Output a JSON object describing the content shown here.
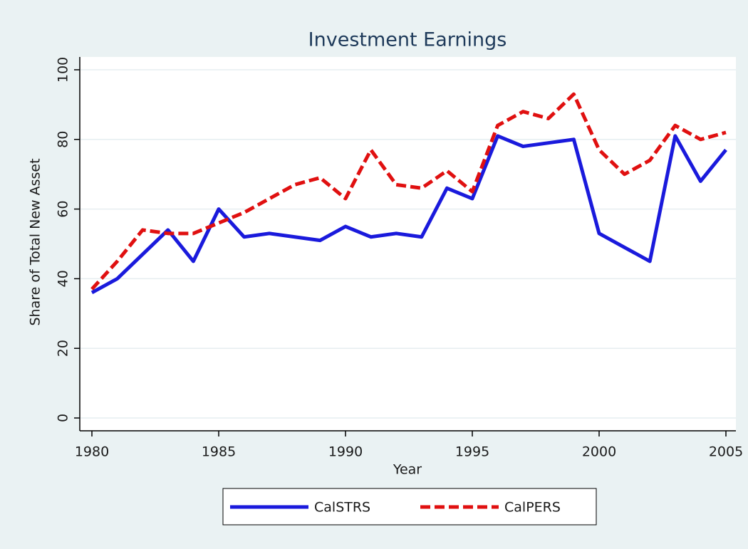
{
  "chart_data": {
    "type": "line",
    "title": "Investment Earnings",
    "x_label": "Year",
    "y_label": "Share of Total New Asset",
    "x": [
      1980,
      1981,
      1982,
      1983,
      1984,
      1985,
      1986,
      1987,
      1988,
      1989,
      1990,
      1991,
      1992,
      1993,
      1994,
      1995,
      1996,
      1997,
      1998,
      1999,
      2000,
      2001,
      2002,
      2003,
      2004,
      2005
    ],
    "series": [
      {
        "name": "CalSTRS",
        "color": "#1a1adc",
        "dash": "solid",
        "values": [
          36,
          40,
          47,
          54,
          45,
          60,
          52,
          53,
          52,
          51,
          55,
          52,
          53,
          52,
          66,
          63,
          81,
          78,
          79,
          80,
          53,
          49,
          45,
          81,
          68,
          77
        ]
      },
      {
        "name": "CalPERS",
        "color": "#e01010",
        "dash": "dashed",
        "values": [
          37,
          45,
          54,
          53,
          53,
          56,
          59,
          63,
          67,
          69,
          63,
          77,
          67,
          66,
          71,
          65,
          84,
          88,
          86,
          93,
          77,
          70,
          74,
          84,
          80,
          82
        ]
      }
    ],
    "xlim": [
      1980,
      2005
    ],
    "xticks": [
      1980,
      1985,
      1990,
      1995,
      2000,
      2005
    ],
    "ylim": [
      0,
      100
    ],
    "yticks": [
      0,
      20,
      40,
      60,
      80,
      100
    ],
    "grid": true,
    "legend": "bottom"
  }
}
